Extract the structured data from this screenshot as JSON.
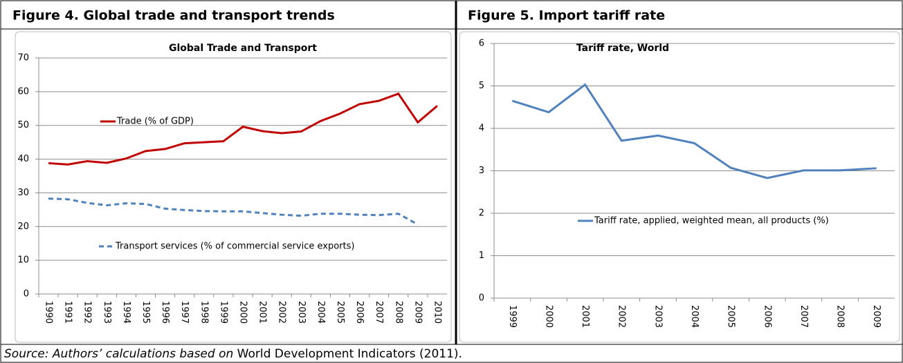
{
  "figures": [
    {
      "title": "Figure 4. Global trade and transport trends"
    },
    {
      "title": "Figure 5. Import tariff rate"
    }
  ],
  "source": {
    "italic": "Source: Authors’ calculations based on",
    "text": "World Development Indicators (2011)."
  },
  "chart_data": [
    {
      "type": "line",
      "title": "Global Trade and Transport",
      "categories": [
        "1990",
        "1991",
        "1992",
        "1993",
        "1994",
        "1995",
        "1996",
        "1997",
        "1998",
        "1999",
        "2000",
        "2001",
        "2002",
        "2003",
        "2004",
        "2005",
        "2006",
        "2007",
        "2008",
        "2009",
        "2010"
      ],
      "series": [
        {
          "name": "Trade (% of GDP)",
          "color": "#c00000",
          "line_style": "solid",
          "values": [
            38.8,
            38.4,
            39.4,
            38.9,
            40.2,
            42.4,
            43.0,
            44.7,
            45.0,
            45.3,
            49.6,
            48.3,
            47.7,
            48.2,
            51.3,
            53.5,
            56.3,
            57.3,
            59.4,
            50.9,
            55.8
          ]
        },
        {
          "name": "Transport services (% of commercial service exports)",
          "color": "#4f81bd",
          "line_style": "dashed",
          "values": [
            28.3,
            28.1,
            27.0,
            26.3,
            26.9,
            26.7,
            25.3,
            24.9,
            24.6,
            24.5,
            24.5,
            24.0,
            23.5,
            23.2,
            23.8,
            23.8,
            23.5,
            23.4,
            23.8,
            20.6,
            null
          ]
        }
      ],
      "ylim": [
        0,
        70
      ],
      "yticks": [
        0,
        10,
        20,
        30,
        40,
        50,
        60,
        70
      ],
      "grid": true
    },
    {
      "type": "line",
      "title": "Tariff rate, World",
      "categories": [
        "1999",
        "2000",
        "2001",
        "2002",
        "2003",
        "2004",
        "2005",
        "2006",
        "2007",
        "2008",
        "2009"
      ],
      "series": [
        {
          "name": "Tariff rate, applied, weighted mean, all products (%)",
          "color": "#4f81bd",
          "line_style": "solid",
          "values": [
            4.65,
            4.38,
            5.03,
            3.71,
            3.83,
            3.65,
            3.07,
            2.83,
            3.01,
            3.01,
            3.06
          ]
        }
      ],
      "ylim": [
        0,
        6
      ],
      "yticks": [
        0,
        1,
        2,
        3,
        4,
        5,
        6
      ],
      "grid": true
    }
  ]
}
